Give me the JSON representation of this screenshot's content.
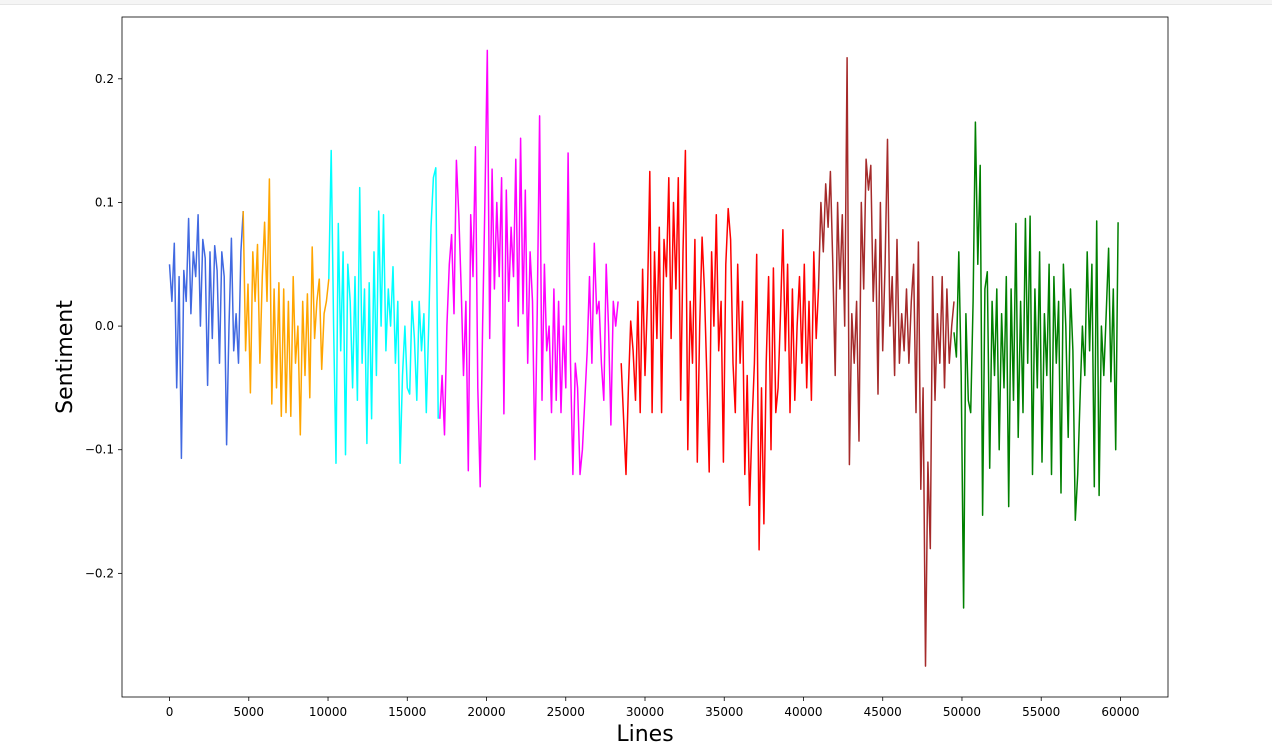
{
  "chart_data": {
    "type": "line",
    "title": "",
    "xlabel": "Lines",
    "ylabel": "Sentiment",
    "xlim": [
      -3000,
      63000
    ],
    "ylim": [
      -0.3,
      0.25
    ],
    "xticks": [
      0,
      5000,
      10000,
      15000,
      20000,
      25000,
      30000,
      35000,
      40000,
      45000,
      50000,
      55000,
      60000
    ],
    "yticks": [
      -0.2,
      -0.1,
      0.0,
      0.1,
      0.2
    ],
    "xtick_labels": [
      "0",
      "5000",
      "10000",
      "15000",
      "20000",
      "25000",
      "30000",
      "35000",
      "40000",
      "45000",
      "50000",
      "55000",
      "60000"
    ],
    "ytick_labels": [
      "−0.2",
      "−0.1",
      "0.0",
      "0.1",
      "0.2"
    ],
    "grid": false,
    "legend": "none",
    "series": [
      {
        "color": "#4169e1",
        "x": [
          0,
          150,
          300,
          450,
          600,
          750,
          900,
          1050,
          1200,
          1350,
          1500,
          1650,
          1800,
          1950,
          2100,
          2250,
          2400,
          2550,
          2700,
          2850,
          3000,
          3150,
          3300,
          3450,
          3600,
          3750,
          3900,
          4050,
          4200,
          4350,
          4500,
          4650
        ],
        "y": [
          0.05,
          0.02,
          0.067,
          -0.05,
          0.04,
          -0.107,
          0.045,
          0.02,
          0.087,
          0.01,
          0.06,
          0.04,
          0.09,
          0.0,
          0.07,
          0.055,
          -0.048,
          0.06,
          -0.01,
          0.065,
          0.045,
          -0.03,
          0.06,
          0.04,
          -0.096,
          0.0,
          0.071,
          -0.02,
          0.01,
          -0.03,
          0.06,
          0.093
        ]
      },
      {
        "color": "#ffa500",
        "x": [
          4650,
          4800,
          4950,
          5100,
          5250,
          5400,
          5550,
          5700,
          5850,
          6000,
          6150,
          6300,
          6450,
          6600,
          6750,
          6900,
          7050,
          7200,
          7350,
          7500,
          7650,
          7800,
          7950,
          8100,
          8250,
          8400,
          8550,
          8700,
          8850,
          9000,
          9150,
          9300,
          9450,
          9600,
          9750,
          9900,
          10050
        ],
        "y": [
          0.093,
          -0.02,
          0.034,
          -0.054,
          0.06,
          0.02,
          0.066,
          -0.03,
          0.04,
          0.084,
          0.02,
          0.119,
          -0.063,
          0.03,
          -0.05,
          0.035,
          -0.073,
          0.03,
          -0.07,
          0.02,
          -0.073,
          0.04,
          -0.03,
          0.0,
          -0.088,
          0.02,
          -0.04,
          0.026,
          -0.058,
          0.064,
          -0.01,
          0.02,
          0.038,
          -0.035,
          0.01,
          0.02,
          0.038
        ]
      },
      {
        "color": "#00ffff",
        "x": [
          10050,
          10200,
          10350,
          10500,
          10650,
          10800,
          10950,
          11100,
          11250,
          11400,
          11550,
          11700,
          11850,
          12000,
          12150,
          12300,
          12450,
          12600,
          12750,
          12900,
          13050,
          13200,
          13350,
          13500,
          13650,
          13800,
          13950,
          14100,
          14250,
          14400,
          14550,
          14700,
          14850,
          15000,
          15150,
          15300,
          15450,
          15600,
          15750,
          15900,
          16050,
          16200,
          16350,
          16500,
          16650,
          16800,
          16950
        ],
        "y": [
          0.038,
          0.142,
          0.0,
          -0.111,
          0.083,
          -0.02,
          0.06,
          -0.104,
          0.05,
          0.02,
          -0.05,
          0.04,
          -0.06,
          0.112,
          -0.03,
          0.03,
          -0.095,
          0.035,
          -0.075,
          0.06,
          -0.04,
          0.093,
          0.0,
          0.09,
          -0.02,
          0.03,
          0.0,
          0.048,
          -0.03,
          0.02,
          -0.111,
          -0.04,
          0.0,
          -0.05,
          -0.055,
          0.02,
          -0.01,
          -0.06,
          0.02,
          -0.02,
          0.01,
          -0.07,
          0.0,
          0.08,
          0.12,
          0.128,
          -0.075
        ]
      },
      {
        "color": "#ff00ff",
        "x": [
          17050,
          17200,
          17350,
          17500,
          17650,
          17800,
          17950,
          18100,
          18250,
          18400,
          18550,
          18700,
          18850,
          19000,
          19150,
          19300,
          19450,
          19600,
          19750,
          19900,
          20050,
          20200,
          20350,
          20500,
          20650,
          20800,
          20950,
          21100,
          21250,
          21400,
          21550,
          21700,
          21850,
          22000,
          22150,
          22300,
          22450,
          22600,
          22750,
          22900,
          23050,
          23200,
          23350,
          23500,
          23650,
          23800,
          23950,
          24100,
          24250,
          24400,
          24550,
          24700,
          24850,
          25000,
          25150,
          25300,
          25450,
          25600,
          25750,
          25900,
          26050,
          26200,
          26350,
          26500,
          26650,
          26800,
          26950,
          27100,
          27250,
          27400,
          27550,
          27700,
          27850,
          28000,
          28150,
          28300
        ],
        "y": [
          -0.075,
          -0.04,
          -0.088,
          0.0,
          0.05,
          0.074,
          0.01,
          0.134,
          0.09,
          0.03,
          -0.04,
          0.02,
          -0.117,
          0.09,
          0.04,
          0.145,
          -0.05,
          -0.13,
          0.0,
          0.1,
          0.223,
          -0.01,
          0.127,
          0.03,
          0.1,
          0.04,
          0.12,
          -0.071,
          0.11,
          0.02,
          0.08,
          0.04,
          0.135,
          0.0,
          0.152,
          0.01,
          0.11,
          -0.03,
          0.06,
          0.02,
          -0.108,
          0.01,
          0.17,
          -0.06,
          0.05,
          -0.02,
          0.0,
          -0.07,
          0.03,
          -0.06,
          0.02,
          -0.07,
          0.0,
          -0.05,
          0.14,
          -0.03,
          -0.12,
          -0.03,
          -0.05,
          -0.12,
          -0.1,
          -0.06,
          -0.02,
          0.04,
          -0.03,
          0.067,
          0.01,
          0.02,
          -0.03,
          -0.06,
          0.05,
          0.0,
          -0.08,
          0.02,
          0.0,
          0.02
        ]
      },
      {
        "color": "#ff0000",
        "x": [
          28500,
          28650,
          28800,
          28950,
          29100,
          29250,
          29400,
          29550,
          29700,
          29850,
          30000,
          30150,
          30300,
          30450,
          30600,
          30750,
          30900,
          31050,
          31200,
          31350,
          31500,
          31650,
          31800,
          31950,
          32100,
          32250,
          32400,
          32550,
          32700,
          32850,
          33000,
          33150,
          33300,
          33450,
          33600,
          33750,
          33900,
          34050,
          34200,
          34350,
          34500,
          34650,
          34800,
          34950,
          35100,
          35250,
          35400,
          35550,
          35700,
          35850,
          36000,
          36150,
          36300,
          36450,
          36600,
          36750,
          36900,
          37050,
          37200,
          37350,
          37500,
          37650,
          37800,
          37950,
          38100,
          38250,
          38400,
          38550,
          38700,
          38850,
          39000,
          39150,
          39300,
          39450,
          39600,
          39750,
          39900,
          40050,
          40200,
          40350,
          40500,
          40650,
          40800,
          40950
        ],
        "y": [
          -0.03,
          -0.075,
          -0.12,
          -0.05,
          0.004,
          -0.02,
          -0.06,
          0.02,
          -0.07,
          0.046,
          -0.04,
          0.02,
          0.125,
          -0.07,
          0.06,
          -0.01,
          0.08,
          -0.07,
          0.07,
          0.04,
          0.12,
          -0.01,
          0.1,
          0.03,
          0.12,
          -0.06,
          0.06,
          0.142,
          -0.1,
          0.02,
          -0.03,
          0.07,
          -0.11,
          0.0,
          0.072,
          0.03,
          -0.04,
          -0.118,
          0.06,
          0.0,
          0.09,
          -0.02,
          0.02,
          -0.11,
          0.05,
          0.095,
          0.07,
          -0.03,
          -0.07,
          0.05,
          -0.03,
          0.02,
          -0.12,
          -0.04,
          -0.145,
          -0.08,
          -0.03,
          0.058,
          -0.181,
          -0.05,
          -0.16,
          -0.03,
          0.04,
          -0.1,
          0.047,
          -0.07,
          -0.05,
          0.01,
          0.078,
          -0.02,
          0.05,
          -0.07,
          0.03,
          -0.06,
          0.0,
          0.04,
          -0.03,
          0.05,
          -0.05,
          0.02,
          -0.06,
          0.06,
          -0.01,
          0.03
        ]
      },
      {
        "color": "#a52a2a",
        "x": [
          40950,
          41100,
          41250,
          41400,
          41550,
          41700,
          41850,
          42000,
          42150,
          42300,
          42450,
          42600,
          42750,
          42900,
          43050,
          43200,
          43350,
          43500,
          43650,
          43800,
          43950,
          44100,
          44250,
          44400,
          44550,
          44700,
          44850,
          45000,
          45150,
          45300,
          45450,
          45600,
          45750,
          45900,
          46050,
          46200,
          46350,
          46500,
          46650,
          46800,
          46950,
          47100,
          47250,
          47400,
          47550,
          47700,
          47850,
          48000,
          48150,
          48300,
          48450,
          48600,
          48750,
          48900,
          49050,
          49200,
          49350,
          49500
        ],
        "y": [
          0.03,
          0.1,
          0.06,
          0.115,
          0.08,
          0.125,
          0.05,
          -0.04,
          0.1,
          0.03,
          0.09,
          0.0,
          0.217,
          -0.112,
          0.01,
          -0.03,
          0.02,
          -0.093,
          0.1,
          0.03,
          0.135,
          0.11,
          0.13,
          0.02,
          0.07,
          -0.055,
          0.1,
          -0.02,
          0.05,
          0.151,
          0.0,
          0.04,
          -0.04,
          0.07,
          -0.03,
          0.01,
          -0.02,
          0.03,
          -0.03,
          0.02,
          0.05,
          -0.07,
          0.068,
          -0.132,
          -0.05,
          -0.275,
          -0.11,
          -0.18,
          0.04,
          -0.06,
          0.01,
          -0.03,
          0.04,
          -0.05,
          0.03,
          -0.03,
          0.0,
          0.02
        ]
      },
      {
        "color": "#008000",
        "x": [
          49500,
          49650,
          49800,
          49950,
          50100,
          50250,
          50400,
          50550,
          50700,
          50850,
          51000,
          51150,
          51300,
          51450,
          51600,
          51750,
          51900,
          52050,
          52200,
          52350,
          52500,
          52650,
          52800,
          52950,
          53100,
          53250,
          53400,
          53550,
          53700,
          53850,
          54000,
          54150,
          54300,
          54450,
          54600,
          54750,
          54900,
          55050,
          55200,
          55350,
          55500,
          55650,
          55800,
          55950,
          56100,
          56250,
          56400,
          56550,
          56700,
          56850,
          57000,
          57150,
          57300,
          57450,
          57600,
          57750,
          57900,
          58050,
          58200,
          58350,
          58500,
          58650,
          58800,
          58950,
          59100,
          59250,
          59400,
          59550,
          59700,
          59850
        ],
        "y": [
          -0.005,
          -0.025,
          0.06,
          -0.04,
          -0.228,
          0.01,
          -0.06,
          -0.07,
          0.02,
          0.165,
          0.05,
          0.13,
          -0.153,
          0.03,
          0.044,
          -0.115,
          0.02,
          -0.04,
          0.03,
          -0.1,
          0.01,
          -0.05,
          0.04,
          -0.146,
          0.03,
          -0.06,
          0.083,
          -0.09,
          0.02,
          -0.07,
          0.087,
          -0.03,
          0.089,
          -0.12,
          0.03,
          -0.05,
          0.06,
          -0.11,
          0.01,
          -0.04,
          0.05,
          -0.12,
          0.04,
          -0.03,
          0.02,
          -0.135,
          0.05,
          0.0,
          -0.09,
          0.03,
          -0.02,
          -0.157,
          -0.12,
          -0.06,
          0.0,
          -0.04,
          0.06,
          -0.02,
          0.05,
          -0.13,
          0.085,
          -0.137,
          0.0,
          -0.04,
          0.01,
          0.063,
          -0.045,
          0.03,
          -0.1,
          0.084
        ]
      }
    ]
  }
}
